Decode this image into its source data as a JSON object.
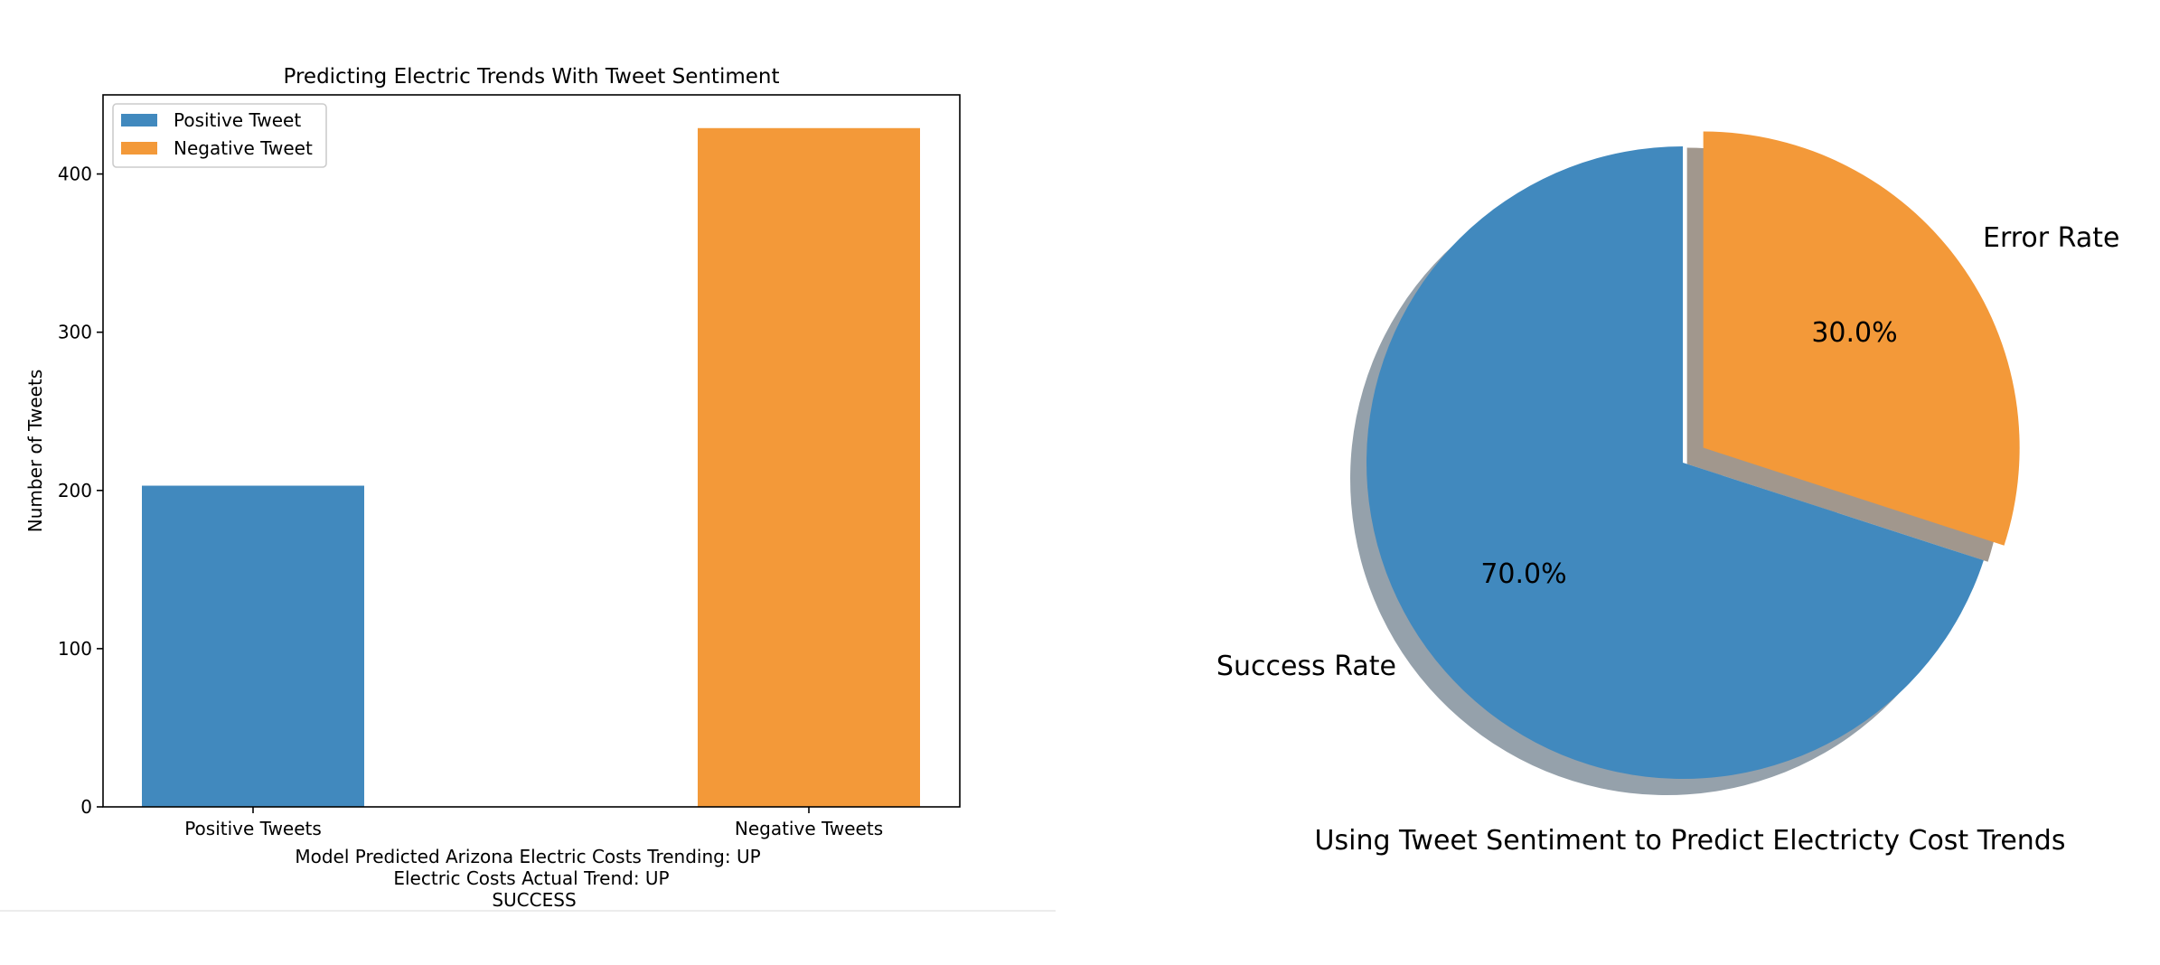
{
  "colors": {
    "positive": "#4189be",
    "negative": "#f39939",
    "pie_shadow_blue": "#7a8a96",
    "pie_shadow_orange": "#8a7d70"
  },
  "chart_data": [
    {
      "type": "bar",
      "title": "Predicting Electric Trends With Tweet Sentiment",
      "xlabel_lines": [
        "Model Predicted Arizona Electric Costs Trending: UP",
        "Electric Costs Actual Trend: UP",
        "SUCCESS"
      ],
      "ylabel": "Number of Tweets",
      "categories": [
        "Positive Tweets",
        "Negative Tweets"
      ],
      "series": [
        {
          "name": "Positive Tweet",
          "values": [
            203,
            null
          ]
        },
        {
          "name": "Negative Tweet",
          "values": [
            null,
            429
          ]
        }
      ],
      "ylim": [
        0,
        450
      ],
      "yticks": [
        0,
        100,
        200,
        300,
        400
      ],
      "legend": "top-left",
      "grid": false
    },
    {
      "type": "pie",
      "title": "Using Tweet Sentiment to Predict Electricty Cost Trends",
      "labels": [
        "Error Rate",
        "Success Rate"
      ],
      "values": [
        30.0,
        70.0
      ],
      "value_labels": [
        "30.0%",
        "70.0%"
      ],
      "exploded": [
        "Error Rate"
      ],
      "shadow": true
    }
  ]
}
